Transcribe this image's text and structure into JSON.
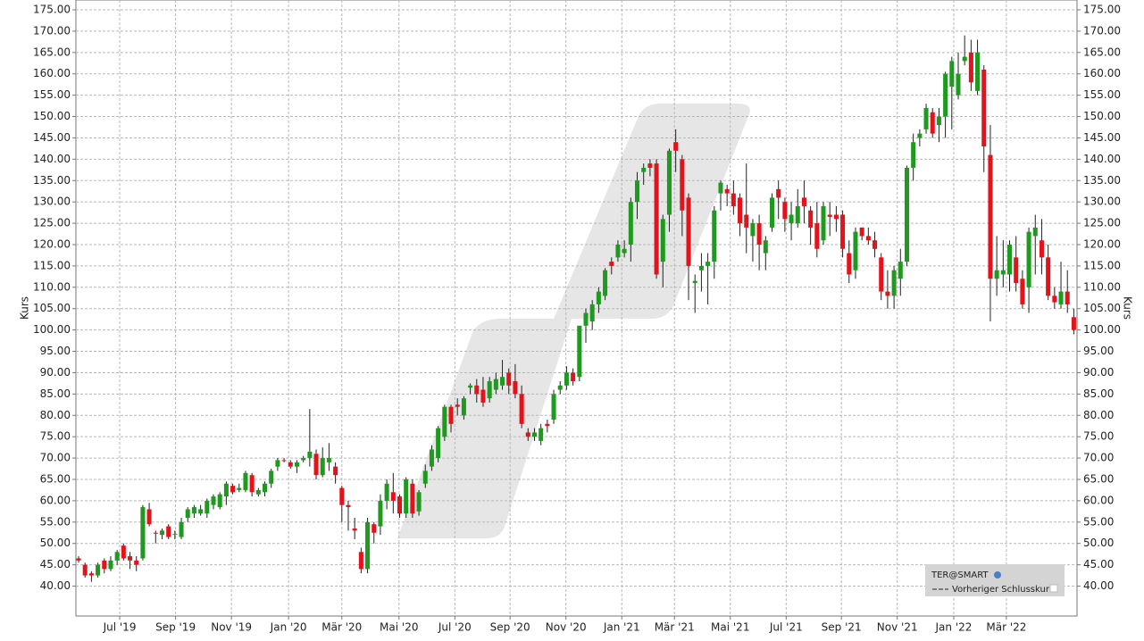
{
  "chart_data": {
    "type": "candlestick",
    "y_axis_label": "Kurs",
    "y2_axis_label": "Kurs",
    "legend": {
      "title": "TER@SMART",
      "items": [
        "Vorheriger Schlusskurs"
      ]
    },
    "up_color": "#1e9a1e",
    "down_color": "#e3121b",
    "grid": true,
    "xlim": [
      -0.42,
      155.5
    ],
    "ylim": [
      33,
      177.3
    ],
    "xticks": [
      {
        "value": 6.4,
        "label": "Jul '19"
      },
      {
        "value": 15.1,
        "label": "Sep '19"
      },
      {
        "value": 23.8,
        "label": "Nov '19"
      },
      {
        "value": 32.7,
        "label": "Jan '20"
      },
      {
        "value": 41.0,
        "label": "Mär '20"
      },
      {
        "value": 49.9,
        "label": "Mai '20"
      },
      {
        "value": 58.6,
        "label": "Jul '20"
      },
      {
        "value": 67.2,
        "label": "Sep '20"
      },
      {
        "value": 75.9,
        "label": "Nov '20"
      },
      {
        "value": 84.6,
        "label": "Jan '21"
      },
      {
        "value": 92.8,
        "label": "Mär '21"
      },
      {
        "value": 101.5,
        "label": "Mai '21"
      },
      {
        "value": 110.2,
        "label": "Jul '21"
      },
      {
        "value": 118.8,
        "label": "Sep '21"
      },
      {
        "value": 127.5,
        "label": "Nov '21"
      },
      {
        "value": 136.3,
        "label": "Jan '22"
      },
      {
        "value": 144.5,
        "label": "Mär '22"
      }
    ],
    "yticks": [
      {
        "value": 40,
        "label": "40.00"
      },
      {
        "value": 45,
        "label": "45.00"
      },
      {
        "value": 50,
        "label": "50.00"
      },
      {
        "value": 55,
        "label": "55.00"
      },
      {
        "value": 60,
        "label": "60.00"
      },
      {
        "value": 65,
        "label": "65.00"
      },
      {
        "value": 70,
        "label": "70.00"
      },
      {
        "value": 75,
        "label": "75.00"
      },
      {
        "value": 80,
        "label": "80.00"
      },
      {
        "value": 85,
        "label": "85.00"
      },
      {
        "value": 90,
        "label": "90.00"
      },
      {
        "value": 95,
        "label": "95.00"
      },
      {
        "value": 100,
        "label": "100.00"
      },
      {
        "value": 105,
        "label": "105.00"
      },
      {
        "value": 110,
        "label": "110.00"
      },
      {
        "value": 115,
        "label": "115.00"
      },
      {
        "value": 120,
        "label": "120.00"
      },
      {
        "value": 125,
        "label": "125.00"
      },
      {
        "value": 130,
        "label": "130.00"
      },
      {
        "value": 135,
        "label": "135.00"
      },
      {
        "value": 140,
        "label": "140.00"
      },
      {
        "value": 145,
        "label": "145.00"
      },
      {
        "value": 150,
        "label": "150.00"
      },
      {
        "value": 155,
        "label": "155.00"
      },
      {
        "value": 160,
        "label": "160.00"
      },
      {
        "value": 165,
        "label": "165.00"
      },
      {
        "value": 170,
        "label": "170.00"
      },
      {
        "value": 175,
        "label": "175.00"
      }
    ],
    "candles": [
      [
        46.5,
        47,
        45.5,
        46
      ],
      [
        45,
        45.5,
        42,
        42.5
      ],
      [
        43,
        43.5,
        41,
        42.5
      ],
      [
        42.5,
        45.5,
        42,
        45
      ],
      [
        46,
        46.5,
        43,
        44
      ],
      [
        44,
        47,
        43.5,
        46
      ],
      [
        46,
        48.5,
        45,
        48
      ],
      [
        49.5,
        50,
        46,
        46.5
      ],
      [
        47,
        48,
        44,
        46
      ],
      [
        46,
        47,
        43.5,
        45
      ],
      [
        46.5,
        59,
        46,
        58.5
      ],
      [
        58,
        59.5,
        54,
        54.5
      ],
      [
        52.5,
        53,
        50,
        52.3
      ],
      [
        52,
        53.5,
        51,
        53
      ],
      [
        54,
        54.5,
        51,
        51.5
      ],
      [
        52,
        53,
        51,
        52.2
      ],
      [
        51.5,
        56,
        51,
        55
      ],
      [
        56,
        58.5,
        55,
        58
      ],
      [
        57,
        59,
        56,
        58.5
      ],
      [
        57,
        59,
        56.5,
        58
      ],
      [
        57,
        60.5,
        56,
        60
      ],
      [
        59,
        61.5,
        58,
        61
      ],
      [
        58.5,
        62,
        58,
        61.5
      ],
      [
        61,
        64.5,
        59,
        64
      ],
      [
        63.5,
        64,
        61.5,
        62
      ],
      [
        62.5,
        64,
        62,
        63
      ],
      [
        62.5,
        67,
        62,
        66.5
      ],
      [
        66,
        66.5,
        61,
        62
      ],
      [
        61.5,
        63,
        61,
        62.5
      ],
      [
        62,
        64.5,
        61,
        64
      ],
      [
        64,
        67.5,
        63,
        67
      ],
      [
        68,
        70,
        67,
        69.5
      ],
      [
        69.5,
        70,
        69,
        69.3
      ],
      [
        69,
        69.5,
        67.5,
        68
      ],
      [
        68,
        69.5,
        66.5,
        69
      ],
      [
        69.5,
        70.5,
        69,
        70
      ],
      [
        70,
        81.5,
        68,
        71.5
      ],
      [
        71,
        72,
        65,
        66
      ],
      [
        66,
        72.5,
        65.5,
        70
      ],
      [
        69,
        73.5,
        67,
        70
      ],
      [
        68,
        69,
        64,
        66
      ],
      [
        63,
        63.5,
        55,
        59
      ],
      [
        59,
        60,
        53,
        58.5
      ],
      [
        53.5,
        56,
        51,
        53
      ],
      [
        48,
        49,
        43,
        44
      ],
      [
        44,
        56,
        43,
        55
      ],
      [
        54.5,
        55,
        50,
        52.5
      ],
      [
        54,
        61.5,
        52,
        60
      ],
      [
        60,
        65,
        58,
        64
      ],
      [
        62,
        66.5,
        57,
        60
      ],
      [
        61,
        61.5,
        56,
        57
      ],
      [
        57,
        65.5,
        56,
        65
      ],
      [
        64,
        65,
        56,
        57
      ],
      [
        57.5,
        62.5,
        56.5,
        62
      ],
      [
        64,
        68.5,
        63,
        67
      ],
      [
        68,
        73,
        67,
        72
      ],
      [
        70,
        77.5,
        69,
        77
      ],
      [
        75,
        82.5,
        74,
        82
      ],
      [
        82,
        82.5,
        76,
        78
      ],
      [
        82.5,
        84,
        80,
        82
      ],
      [
        80,
        84.5,
        79,
        84
      ],
      [
        86.5,
        87.5,
        85,
        87
      ],
      [
        87,
        88.5,
        83,
        85
      ],
      [
        86,
        89,
        82,
        83
      ],
      [
        84,
        89,
        83,
        88
      ],
      [
        86,
        90,
        85,
        88.5
      ],
      [
        87,
        93,
        86,
        89
      ],
      [
        90,
        91,
        85,
        87
      ],
      [
        88,
        92,
        84,
        85
      ],
      [
        85,
        87,
        77,
        78
      ],
      [
        76,
        77,
        74,
        75
      ],
      [
        75,
        77,
        74,
        76
      ],
      [
        74,
        78,
        73,
        77
      ],
      [
        78,
        79,
        76,
        77.5
      ],
      [
        79,
        86,
        78,
        85
      ],
      [
        86,
        88,
        85,
        87
      ],
      [
        87,
        91.5,
        86,
        90
      ],
      [
        90,
        91,
        87,
        88
      ],
      [
        89,
        101,
        88,
        101
      ],
      [
        101,
        105,
        97,
        104
      ],
      [
        102,
        107,
        100,
        106
      ],
      [
        106,
        110,
        104,
        109
      ],
      [
        108,
        114.5,
        107,
        114
      ],
      [
        116,
        117,
        113,
        115
      ],
      [
        117,
        121,
        116,
        120
      ],
      [
        118,
        121,
        117,
        119
      ],
      [
        120,
        131,
        116,
        130
      ],
      [
        130,
        137,
        126,
        135
      ],
      [
        137,
        139,
        134,
        138
      ],
      [
        139,
        140,
        136,
        138
      ],
      [
        139,
        140,
        112,
        113
      ],
      [
        116,
        127,
        110,
        126
      ],
      [
        127,
        142.5,
        123,
        142
      ],
      [
        144,
        147,
        137,
        142
      ],
      [
        140,
        141,
        122,
        128
      ],
      [
        131,
        132,
        107,
        115
      ],
      [
        111,
        113,
        104,
        111.5
      ],
      [
        114,
        118,
        109,
        115
      ],
      [
        115,
        118,
        106,
        116
      ],
      [
        116,
        129,
        112,
        128
      ],
      [
        132,
        135,
        128,
        134.5
      ],
      [
        133,
        134,
        129,
        132
      ],
      [
        132,
        135,
        127,
        129
      ],
      [
        131,
        132,
        122,
        125
      ],
      [
        127,
        139,
        118,
        124
      ],
      [
        122,
        126,
        116,
        125
      ],
      [
        125,
        127,
        114,
        120
      ],
      [
        118,
        122,
        114,
        121
      ],
      [
        124,
        132,
        123,
        131
      ],
      [
        133,
        135,
        126,
        131
      ],
      [
        130,
        131,
        123,
        126
      ],
      [
        125,
        130,
        121,
        127
      ],
      [
        125,
        133,
        124,
        129
      ],
      [
        131,
        135,
        125,
        129
      ],
      [
        128,
        129,
        120,
        124
      ],
      [
        125,
        130,
        117,
        119
      ],
      [
        121,
        130,
        120,
        129
      ],
      [
        127,
        130,
        122,
        126.5
      ],
      [
        127,
        129,
        123,
        126
      ],
      [
        127,
        128,
        117,
        119
      ],
      [
        118,
        121,
        111,
        113
      ],
      [
        114,
        124,
        112,
        123
      ],
      [
        124,
        124,
        121,
        122
      ],
      [
        122,
        124,
        120,
        121
      ],
      [
        121,
        123,
        117,
        119
      ],
      [
        117,
        118,
        107,
        109
      ],
      [
        109,
        114,
        105,
        108
      ],
      [
        108,
        115,
        105,
        114
      ],
      [
        112,
        119,
        108,
        116
      ],
      [
        116,
        138.5,
        115,
        138
      ],
      [
        138,
        146,
        135,
        144
      ],
      [
        145,
        147,
        143,
        146
      ],
      [
        147,
        153,
        146,
        152
      ],
      [
        151,
        152,
        145,
        146
      ],
      [
        148,
        152,
        144,
        150
      ],
      [
        150,
        160.5,
        145,
        160
      ],
      [
        157,
        164,
        147,
        163
      ],
      [
        155,
        165,
        154,
        160
      ],
      [
        163,
        169,
        162,
        164
      ],
      [
        165,
        168,
        156,
        158
      ],
      [
        156,
        168,
        155,
        165
      ],
      [
        161,
        162,
        137,
        143
      ],
      [
        141,
        148,
        102,
        112
      ],
      [
        112,
        122,
        108,
        114
      ],
      [
        113,
        121,
        110,
        114
      ],
      [
        113,
        121,
        109,
        120
      ],
      [
        117,
        122,
        109,
        111
      ],
      [
        112,
        114,
        105,
        106
      ],
      [
        110,
        124,
        104,
        123
      ],
      [
        122,
        127,
        113,
        124
      ],
      [
        121,
        126,
        113,
        117
      ],
      [
        117,
        120,
        107,
        108
      ],
      [
        108,
        110,
        105,
        106.5
      ],
      [
        106,
        116,
        105,
        109
      ],
      [
        109,
        114,
        104,
        106
      ],
      [
        103,
        105,
        99,
        100
      ]
    ]
  }
}
